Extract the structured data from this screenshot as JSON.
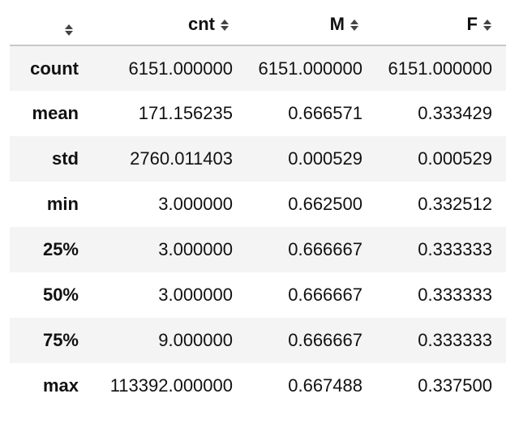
{
  "table": {
    "columns": [
      {
        "label": "",
        "icon": "sort-icon"
      },
      {
        "label": "cnt",
        "icon": "sort-icon"
      },
      {
        "label": "M",
        "icon": "sort-icon"
      },
      {
        "label": "F",
        "icon": "sort-icon"
      }
    ],
    "rows": [
      {
        "index": "count",
        "cnt": "6151.000000",
        "M": "6151.000000",
        "F": "6151.000000"
      },
      {
        "index": "mean",
        "cnt": "171.156235",
        "M": "0.666571",
        "F": "0.333429"
      },
      {
        "index": "std",
        "cnt": "2760.011403",
        "M": "0.000529",
        "F": "0.000529"
      },
      {
        "index": "min",
        "cnt": "3.000000",
        "M": "0.662500",
        "F": "0.332512"
      },
      {
        "index": "25%",
        "cnt": "3.000000",
        "M": "0.666667",
        "F": "0.333333"
      },
      {
        "index": "50%",
        "cnt": "3.000000",
        "M": "0.666667",
        "F": "0.333333"
      },
      {
        "index": "75%",
        "cnt": "9.000000",
        "M": "0.666667",
        "F": "0.333333"
      },
      {
        "index": "max",
        "cnt": "113392.000000",
        "M": "0.667488",
        "F": "0.337500"
      }
    ]
  },
  "colors": {
    "stripe": "#f4f4f4",
    "header_border": "#c8c8c8",
    "text": "#111111",
    "icon": "#444444"
  }
}
